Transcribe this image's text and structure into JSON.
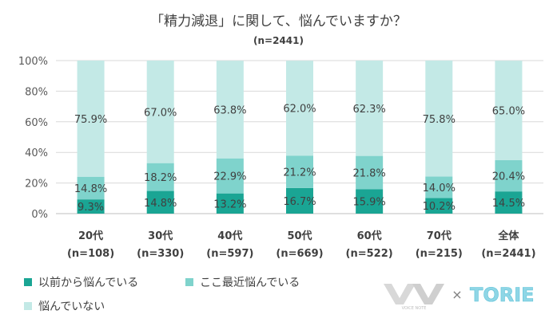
{
  "chart_data": {
    "type": "bar",
    "stacked": true,
    "title": "「精力減退」に関して、悩んでいますか？",
    "subtitle": "(n=2441)",
    "categories": [
      "20代",
      "30代",
      "40代",
      "50代",
      "60代",
      "70代",
      "全体"
    ],
    "category_n": [
      "(n=108)",
      "(n=330)",
      "(n=597)",
      "(n=669)",
      "(n=522)",
      "(n=215)",
      "(n=2441)"
    ],
    "series": [
      {
        "name": "以前から悩んでいる",
        "values": [
          9.3,
          14.8,
          13.2,
          16.7,
          15.9,
          10.2,
          14.5
        ],
        "color": "#1aa594"
      },
      {
        "name": "ここ最近悩んでいる",
        "values": [
          14.8,
          18.2,
          22.9,
          21.2,
          21.8,
          14.0,
          20.4
        ],
        "color": "#7fd3cc"
      },
      {
        "name": "悩んでいない",
        "values": [
          75.9,
          67.0,
          63.8,
          62.0,
          62.3,
          75.8,
          65.0
        ],
        "color": "#c3e9e6"
      }
    ],
    "yticks": [
      "0%",
      "20%",
      "40%",
      "60%",
      "80%",
      "100%"
    ],
    "ylim": [
      0,
      100
    ],
    "legend": "bottom-left",
    "grid": true
  },
  "branding": {
    "logo_small_text": "VOICE NOTE",
    "separator": "×",
    "partner_name": "TORIE"
  }
}
